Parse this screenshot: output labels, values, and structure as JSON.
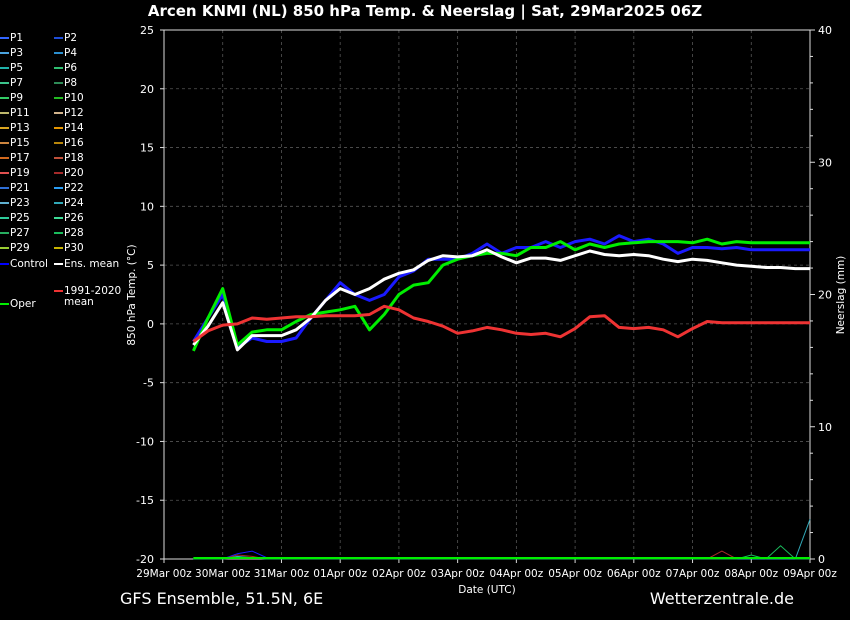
{
  "title": "Arcen KNMI  (NL)  850 hPa Temp. & Neerslag | Sat, 29Mar2025 06Z",
  "footer": {
    "left": "GFS Ensemble, 51.5N, 6E",
    "right": "Wetterzentrale.de"
  },
  "legend": {
    "items": [
      {
        "label": "P1",
        "color": "#3366ff"
      },
      {
        "label": "P2",
        "color": "#1e4dd8"
      },
      {
        "label": "P3",
        "color": "#4aa3df"
      },
      {
        "label": "P4",
        "color": "#2b8fcf"
      },
      {
        "label": "P5",
        "color": "#20b2aa"
      },
      {
        "label": "P6",
        "color": "#2fbf71"
      },
      {
        "label": "P7",
        "color": "#3cc48c"
      },
      {
        "label": "P8",
        "color": "#2e8b57"
      },
      {
        "label": "P9",
        "color": "#33cc66"
      },
      {
        "label": "P10",
        "color": "#22bb22"
      },
      {
        "label": "P11",
        "color": "#bdb76b"
      },
      {
        "label": "P12",
        "color": "#d2b48c"
      },
      {
        "label": "P13",
        "color": "#daa520"
      },
      {
        "label": "P14",
        "color": "#e69500"
      },
      {
        "label": "P15",
        "color": "#cd853f"
      },
      {
        "label": "P16",
        "color": "#b8860b"
      },
      {
        "label": "P17",
        "color": "#d2691e"
      },
      {
        "label": "P18",
        "color": "#c0503a"
      },
      {
        "label": "P19",
        "color": "#e05050"
      },
      {
        "label": "P20",
        "color": "#a52a2a"
      },
      {
        "label": "P21",
        "color": "#2f6fd6"
      },
      {
        "label": "P22",
        "color": "#2a9df4"
      },
      {
        "label": "P23",
        "color": "#5fb0d0"
      },
      {
        "label": "P24",
        "color": "#31a9b8"
      },
      {
        "label": "P25",
        "color": "#2ecc9a"
      },
      {
        "label": "P26",
        "color": "#3ddc97"
      },
      {
        "label": "P27",
        "color": "#27ae60"
      },
      {
        "label": "P28",
        "color": "#1abc5c"
      },
      {
        "label": "P29",
        "color": "#9acd32"
      },
      {
        "label": "P30",
        "color": "#c8b400"
      }
    ],
    "control_label": "Control",
    "control_color": "#0000ff",
    "mean_label": "Ens. mean",
    "mean_color": "#ffffff",
    "oper_label": "Oper",
    "oper_color": "#00ee00",
    "clim_label_line1": "1991-2020",
    "clim_label_line2": "mean",
    "clim_color": "#ee3333"
  },
  "chart_data": {
    "type": "line",
    "title": "Arcen KNMI  (NL)  850 hPa Temp. & Neerslag | Sat, 29Mar2025 06Z",
    "xlabel": "Date (UTC)",
    "ylabel": "850 hPa Temp. (°C)",
    "y2label": "Neerslag (mm)",
    "ylim": [
      -20,
      25
    ],
    "y2lim": [
      0,
      40
    ],
    "yticks": [
      25,
      20,
      15,
      10,
      5,
      0,
      -5,
      -10,
      -15,
      -20
    ],
    "y2ticks": [
      40,
      30,
      20,
      10,
      0
    ],
    "xlim": [
      0,
      264
    ],
    "xticks": [
      {
        "x": 0,
        "label": "29Mar 00z"
      },
      {
        "x": 24,
        "label": "30Mar 00z"
      },
      {
        "x": 48,
        "label": "31Mar 00z"
      },
      {
        "x": 72,
        "label": "01Apr 00z"
      },
      {
        "x": 96,
        "label": "02Apr 00z"
      },
      {
        "x": 120,
        "label": "03Apr 00z"
      },
      {
        "x": 144,
        "label": "04Apr 00z"
      },
      {
        "x": 168,
        "label": "05Apr 00z"
      },
      {
        "x": 192,
        "label": "06Apr 00z"
      },
      {
        "x": 216,
        "label": "07Apr 00z"
      },
      {
        "x": 240,
        "label": "08Apr 00z"
      },
      {
        "x": 264,
        "label": "09Apr 00z"
      }
    ],
    "grid": true,
    "x": [
      12,
      18,
      24,
      30,
      36,
      42,
      48,
      54,
      60,
      66,
      72,
      78,
      84,
      90,
      96,
      102,
      108,
      114,
      120,
      126,
      132,
      138,
      144,
      150,
      156,
      162,
      168,
      174,
      180,
      186,
      192,
      198,
      204,
      210,
      216,
      222,
      228,
      234,
      240,
      246,
      252,
      258,
      264
    ],
    "series": [
      {
        "name": "Ens. mean",
        "values": [
          -1.8,
          -0.2,
          1.8,
          -2.2,
          -1.0,
          -1.0,
          -1.0,
          -0.5,
          0.5,
          2.0,
          3.0,
          2.5,
          3.0,
          3.8,
          4.3,
          4.6,
          5.4,
          5.8,
          5.7,
          5.8,
          6.3,
          5.7,
          5.2,
          5.6,
          5.6,
          5.4,
          5.8,
          6.2,
          5.9,
          5.8,
          5.9,
          5.8,
          5.5,
          5.3,
          5.5,
          5.4,
          5.2,
          5.0,
          4.9,
          4.8,
          4.8,
          4.7,
          4.7
        ]
      },
      {
        "name": "Control",
        "values": [
          -1.5,
          0.5,
          2.5,
          -2.0,
          -1.2,
          -1.5,
          -1.5,
          -1.2,
          0.5,
          2.0,
          3.5,
          2.5,
          2.0,
          2.5,
          4.0,
          4.5,
          5.5,
          5.5,
          5.5,
          6.0,
          6.8,
          6.0,
          6.5,
          6.5,
          7.0,
          6.5,
          7.0,
          7.2,
          6.8,
          7.5,
          7.0,
          7.2,
          6.8,
          6.0,
          6.5,
          6.5,
          6.4,
          6.5,
          6.3,
          6.3,
          6.3,
          6.3,
          6.3
        ]
      },
      {
        "name": "Oper",
        "values": [
          -2.3,
          0.5,
          3.0,
          -1.8,
          -0.7,
          -0.5,
          -0.5,
          0.2,
          0.8,
          1.0,
          1.2,
          1.5,
          -0.5,
          0.8,
          2.5,
          3.3,
          3.5,
          5.0,
          5.5,
          5.8,
          6.0,
          6.0,
          5.8,
          6.5,
          6.5,
          7.0,
          6.3,
          6.8,
          6.5,
          6.8,
          6.9,
          7.0,
          7.0,
          7.0,
          6.9,
          7.2,
          6.8,
          7.0,
          6.9,
          6.9,
          6.9,
          6.9,
          6.9
        ]
      },
      {
        "name": "1991-2020 mean",
        "values": [
          -1.5,
          -0.6,
          -0.1,
          0.0,
          0.5,
          0.4,
          0.5,
          0.6,
          0.6,
          0.7,
          0.7,
          0.7,
          0.8,
          1.5,
          1.2,
          0.5,
          0.2,
          -0.2,
          -0.8,
          -0.6,
          -0.3,
          -0.5,
          -0.8,
          -0.9,
          -0.8,
          -1.1,
          -0.4,
          0.6,
          0.7,
          -0.3,
          -0.4,
          -0.3,
          -0.5,
          -1.1,
          -0.4,
          0.2,
          0.1,
          0.1,
          0.1,
          0.1,
          0.1,
          0.1,
          0.1
        ]
      }
    ],
    "precip_series": [
      {
        "name": "Control",
        "values": [
          0,
          0,
          0,
          0.4,
          0.6,
          0.1,
          0,
          0,
          0,
          0,
          0,
          0,
          0,
          0,
          0,
          0,
          0,
          0,
          0,
          0,
          0,
          0,
          0,
          0,
          0,
          0,
          0,
          0,
          0,
          0,
          0,
          0,
          0,
          0,
          0,
          0,
          0,
          0,
          0,
          0,
          0,
          0,
          0
        ]
      },
      {
        "name": "P20",
        "values": [
          0,
          0,
          0,
          0.3,
          0.2,
          0,
          0,
          0,
          0,
          0,
          0,
          0,
          0,
          0,
          0,
          0,
          0,
          0,
          0,
          0,
          0,
          0,
          0,
          0,
          0,
          0,
          0,
          0,
          0,
          0,
          0,
          0,
          0,
          0,
          0,
          0,
          0.6,
          0,
          0,
          0,
          0,
          0,
          0
        ]
      },
      {
        "name": "P24",
        "values": [
          0,
          0,
          0,
          0.2,
          0.1,
          0,
          0,
          0,
          0,
          0,
          0,
          0,
          0,
          0,
          0,
          0,
          0,
          0,
          0,
          0,
          0,
          0,
          0,
          0,
          0,
          0,
          0,
          0,
          0,
          0,
          0,
          0,
          0,
          0,
          0,
          0,
          0,
          0,
          0,
          0,
          0,
          0,
          3.0
        ]
      },
      {
        "name": "P28",
        "values": [
          0,
          0,
          0,
          0.1,
          0.1,
          0,
          0,
          0,
          0,
          0,
          0,
          0,
          0,
          0,
          0,
          0,
          0,
          0,
          0,
          0,
          0,
          0,
          0,
          0,
          0,
          0,
          0,
          0,
          0,
          0,
          0,
          0,
          0,
          0,
          0,
          0,
          0,
          0,
          0.3,
          0,
          1.0,
          0,
          0
        ]
      }
    ]
  }
}
